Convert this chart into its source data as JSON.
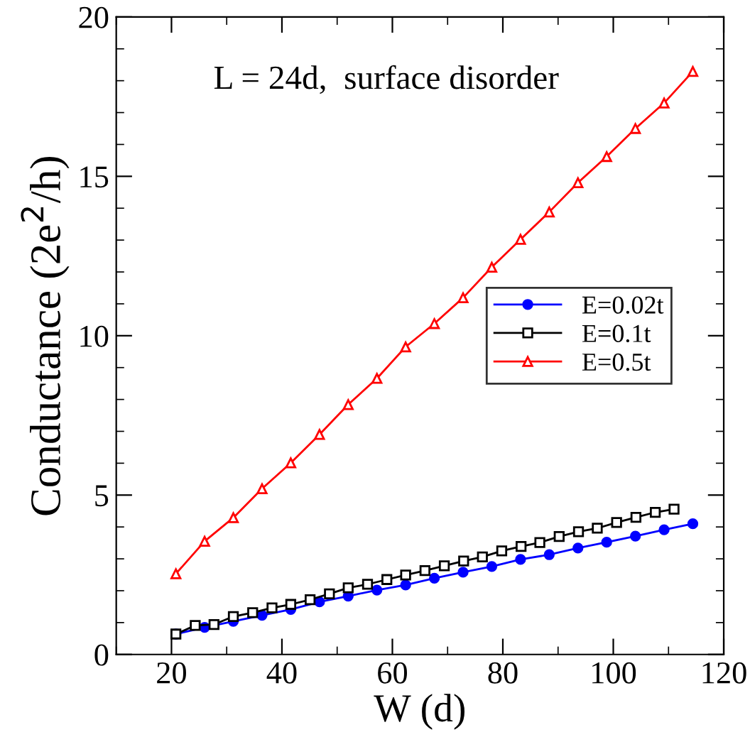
{
  "chart_data": {
    "type": "line",
    "xlabel": "W (d)",
    "ylabel": "Conductance (2e$^{2}$/h)",
    "annotations": [
      "L = 24d,  surface disorder"
    ],
    "xlim": [
      10,
      120
    ],
    "xticks": [
      20,
      40,
      60,
      80,
      100,
      120
    ],
    "ylim": [
      0,
      20
    ],
    "yticks": [
      0,
      5,
      10,
      15,
      20
    ],
    "grid": false,
    "legend": "right",
    "series": [
      {
        "name": "E=0.02t",
        "color": "#0000ff",
        "marker": "circle",
        "x": [
          20.8,
          26.0,
          31.2,
          36.4,
          41.6,
          46.8,
          52.0,
          57.2,
          62.4,
          67.6,
          72.8,
          78.0,
          83.2,
          88.4,
          93.6,
          98.8,
          104.0,
          109.2,
          114.4
        ],
        "values": [
          0.64,
          0.85,
          1.04,
          1.23,
          1.41,
          1.65,
          1.83,
          2.02,
          2.18,
          2.39,
          2.58,
          2.76,
          2.98,
          3.13,
          3.34,
          3.52,
          3.71,
          3.91,
          4.1
        ]
      },
      {
        "name": "E=0.1t",
        "color": "#000000",
        "marker": "square",
        "x": [
          20.8,
          24.3,
          27.7,
          31.2,
          34.7,
          38.2,
          41.6,
          45.1,
          48.6,
          52.0,
          55.5,
          59.0,
          62.4,
          65.9,
          69.4,
          72.9,
          76.3,
          79.8,
          83.3,
          86.7,
          90.2,
          93.7,
          97.1,
          100.6,
          104.1,
          107.6,
          111.0
        ],
        "values": [
          0.64,
          0.91,
          0.94,
          1.19,
          1.31,
          1.46,
          1.57,
          1.72,
          1.9,
          2.09,
          2.2,
          2.35,
          2.49,
          2.63,
          2.78,
          2.93,
          3.06,
          3.25,
          3.39,
          3.51,
          3.7,
          3.85,
          3.96,
          4.14,
          4.3,
          4.46,
          4.56
        ]
      },
      {
        "name": "E=0.5t",
        "color": "#ff0000",
        "marker": "triangle",
        "x": [
          20.8,
          26.0,
          31.2,
          36.4,
          41.6,
          46.8,
          52.0,
          57.2,
          62.4,
          67.6,
          72.8,
          78.0,
          83.2,
          88.4,
          93.6,
          98.8,
          104.0,
          109.2,
          114.4
        ],
        "values": [
          2.53,
          3.55,
          4.29,
          5.2,
          6.01,
          6.9,
          7.84,
          8.66,
          9.65,
          10.38,
          11.19,
          12.15,
          13.02,
          13.88,
          14.8,
          15.62,
          16.5,
          17.3,
          18.29
        ]
      }
    ]
  }
}
